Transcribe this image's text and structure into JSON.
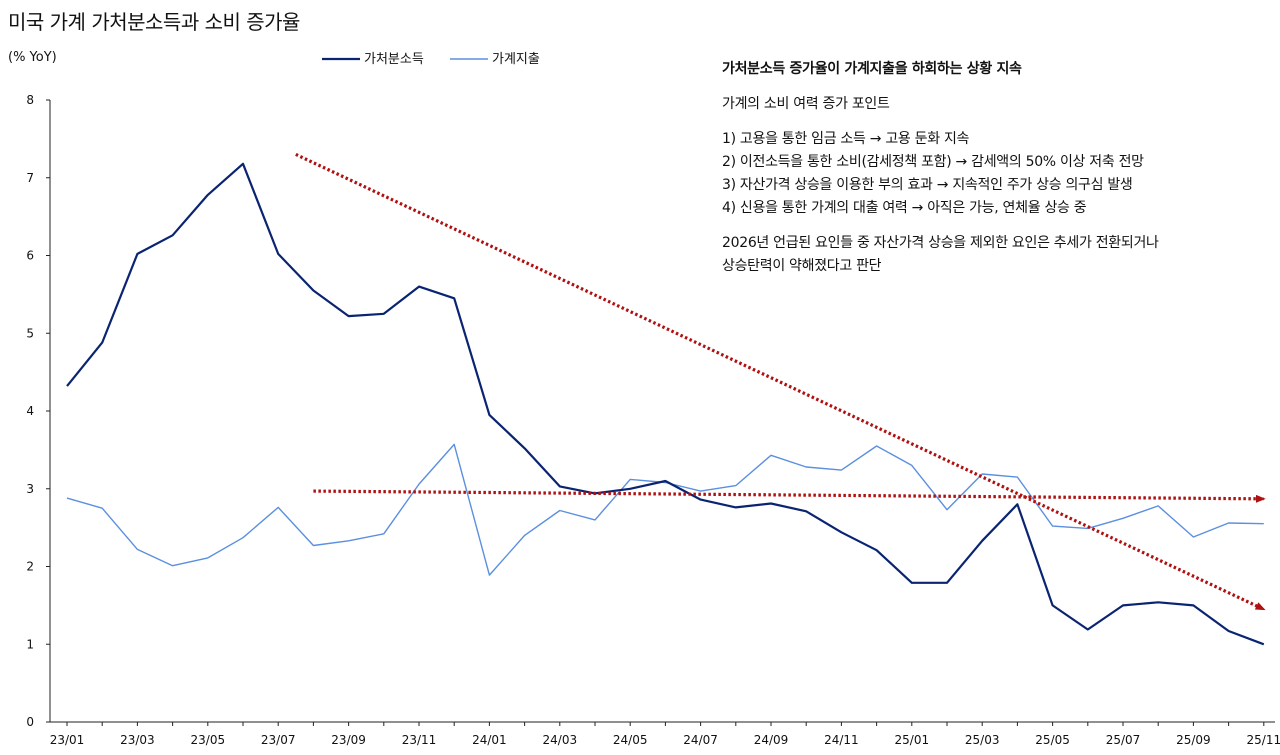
{
  "chart_data": {
    "type": "line",
    "title": "미국 가계 가처분소득과 소비 증가율",
    "ylabel": "(% YoY)",
    "ylim": [
      0,
      8
    ],
    "yticks": [
      0,
      1,
      2,
      3,
      4,
      5,
      6,
      7,
      8
    ],
    "x_tick_labels": [
      "23/01",
      "23/03",
      "23/05",
      "23/07",
      "23/09",
      "23/11",
      "24/01",
      "24/03",
      "24/05",
      "24/07",
      "24/09",
      "24/11",
      "25/01",
      "25/03",
      "25/05",
      "25/07",
      "25/09",
      "25/11"
    ],
    "series": [
      {
        "name": "가처분소득",
        "color": "#0a2472",
        "values": [
          4.32,
          4.88,
          6.02,
          6.26,
          6.78,
          7.18,
          6.02,
          5.55,
          5.22,
          5.25,
          5.6,
          5.45,
          3.95,
          3.52,
          3.03,
          2.94,
          3.0,
          3.1,
          2.86,
          2.76,
          2.81,
          2.71,
          2.44,
          2.21,
          1.79,
          1.79,
          2.33,
          2.8,
          1.5,
          1.19,
          1.5,
          1.54,
          1.5,
          1.17,
          1.0
        ]
      },
      {
        "name": "가계지출",
        "color": "#5b8fe0",
        "values": [
          2.88,
          2.75,
          2.22,
          2.01,
          2.11,
          2.37,
          2.76,
          2.27,
          2.33,
          2.42,
          3.06,
          3.57,
          1.89,
          2.4,
          2.72,
          2.6,
          3.12,
          3.08,
          2.97,
          3.04,
          3.43,
          3.28,
          3.24,
          3.55,
          3.3,
          2.73,
          3.19,
          3.15,
          2.52,
          2.49,
          2.62,
          2.78,
          2.38,
          2.56,
          2.55
        ]
      }
    ],
    "annotations": {
      "trend_arrow_1": {
        "from": [
          6.5,
          7.3
        ],
        "to": [
          34.0,
          1.45
        ],
        "color": "#b01010"
      },
      "trend_arrow_2": {
        "from": [
          7.0,
          2.97
        ],
        "to": [
          34.0,
          2.87
        ],
        "color": "#b01010"
      },
      "headline": "가처분소득 증가율이 가계지출을 하회하는 상황 지속",
      "subheading": "가계의 소비 여력 증가 포인트",
      "points": [
        "1)  고용을 통한 임금 소득 → 고용 둔화 지속",
        "2)  이전소득을 통한 소비(감세정책 포함) → 감세액의 50% 이상 저축 전망",
        "3)  자산가격 상승을 이용한 부의 효과 → 지속적인 주가 상승 의구심 발생",
        "4)  신용을 통한 가계의 대출 여력 → 아직은 가능, 연체율 상승 중"
      ],
      "conclusion_1": "2026년 언급된 요인들 중 자산가격 상승을 제외한 요인은 추세가 전환되거나",
      "conclusion_2": "상승탄력이 약해졌다고 판단"
    }
  }
}
